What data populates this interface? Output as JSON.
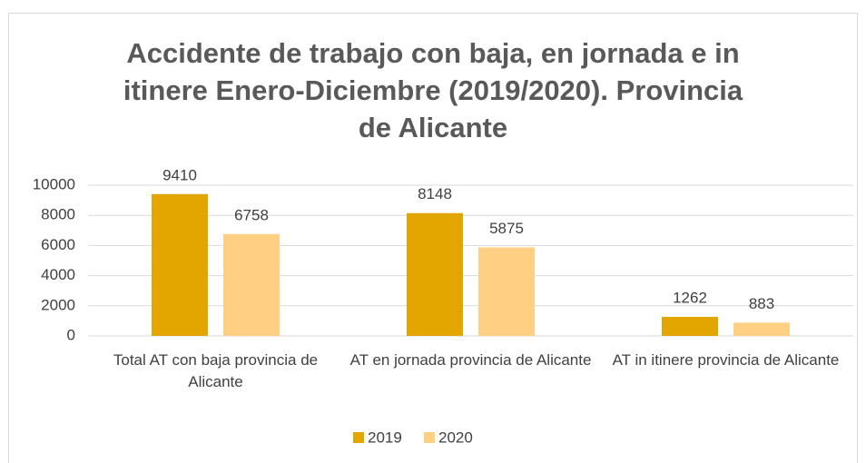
{
  "chart_data": {
    "type": "bar",
    "title": "Accidente de trabajo con baja, en jornada e in itinere Enero-Diciembre (2019/2020). Provincia de Alicante",
    "categories": [
      "Total AT con baja provincia de Alicante",
      "AT en jornada provincia de Alicante",
      "AT in itinere provincia de Alicante"
    ],
    "series": [
      {
        "name": "2019",
        "color": "#e3a600",
        "values": [
          9410,
          8148,
          1262
        ]
      },
      {
        "name": "2020",
        "color": "#ffd084",
        "values": [
          6758,
          5875,
          883
        ]
      }
    ],
    "ylim": [
      0,
      10000
    ],
    "yticks": [
      0,
      2000,
      4000,
      6000,
      8000,
      10000
    ],
    "grid": true,
    "legend": "bottom"
  }
}
